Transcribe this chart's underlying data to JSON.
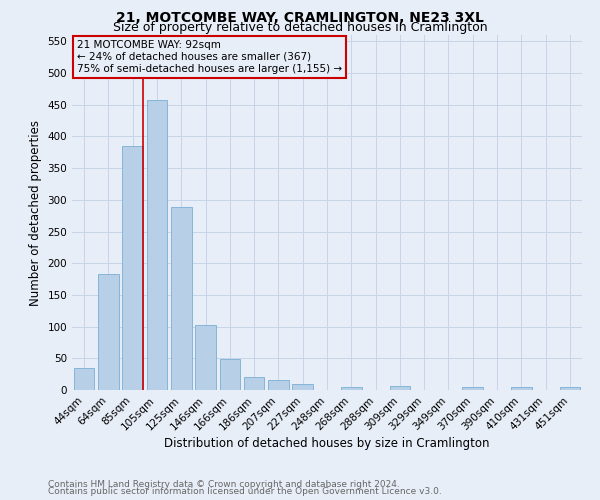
{
  "title": "21, MOTCOMBE WAY, CRAMLINGTON, NE23 3XL",
  "subtitle": "Size of property relative to detached houses in Cramlington",
  "xlabel": "Distribution of detached houses by size in Cramlington",
  "ylabel": "Number of detached properties",
  "footnote1": "Contains HM Land Registry data © Crown copyright and database right 2024.",
  "footnote2": "Contains public sector information licensed under the Open Government Licence v3.0.",
  "bar_labels": [
    "44sqm",
    "64sqm",
    "85sqm",
    "105sqm",
    "125sqm",
    "146sqm",
    "166sqm",
    "186sqm",
    "207sqm",
    "227sqm",
    "248sqm",
    "268sqm",
    "288sqm",
    "309sqm",
    "329sqm",
    "349sqm",
    "370sqm",
    "390sqm",
    "410sqm",
    "431sqm",
    "451sqm"
  ],
  "bar_values": [
    35,
    183,
    385,
    458,
    288,
    103,
    49,
    20,
    16,
    10,
    0,
    5,
    0,
    6,
    0,
    0,
    5,
    0,
    5,
    0,
    5
  ],
  "bar_color": "#b8cfe8",
  "bar_edge_color": "#7aafd4",
  "annotation_text": "21 MOTCOMBE WAY: 92sqm\n← 24% of detached houses are smaller (367)\n75% of semi-detached houses are larger (1,155) →",
  "annotation_box_color": "#cc0000",
  "vline_color": "#cc0000",
  "ylim": [
    0,
    560
  ],
  "yticks": [
    0,
    50,
    100,
    150,
    200,
    250,
    300,
    350,
    400,
    450,
    500,
    550
  ],
  "grid_color": "#c8d4e8",
  "background_color": "#e8eef8",
  "title_fontsize": 10,
  "subtitle_fontsize": 9,
  "axis_label_fontsize": 8.5,
  "tick_fontsize": 7.5,
  "footnote_fontsize": 6.5
}
